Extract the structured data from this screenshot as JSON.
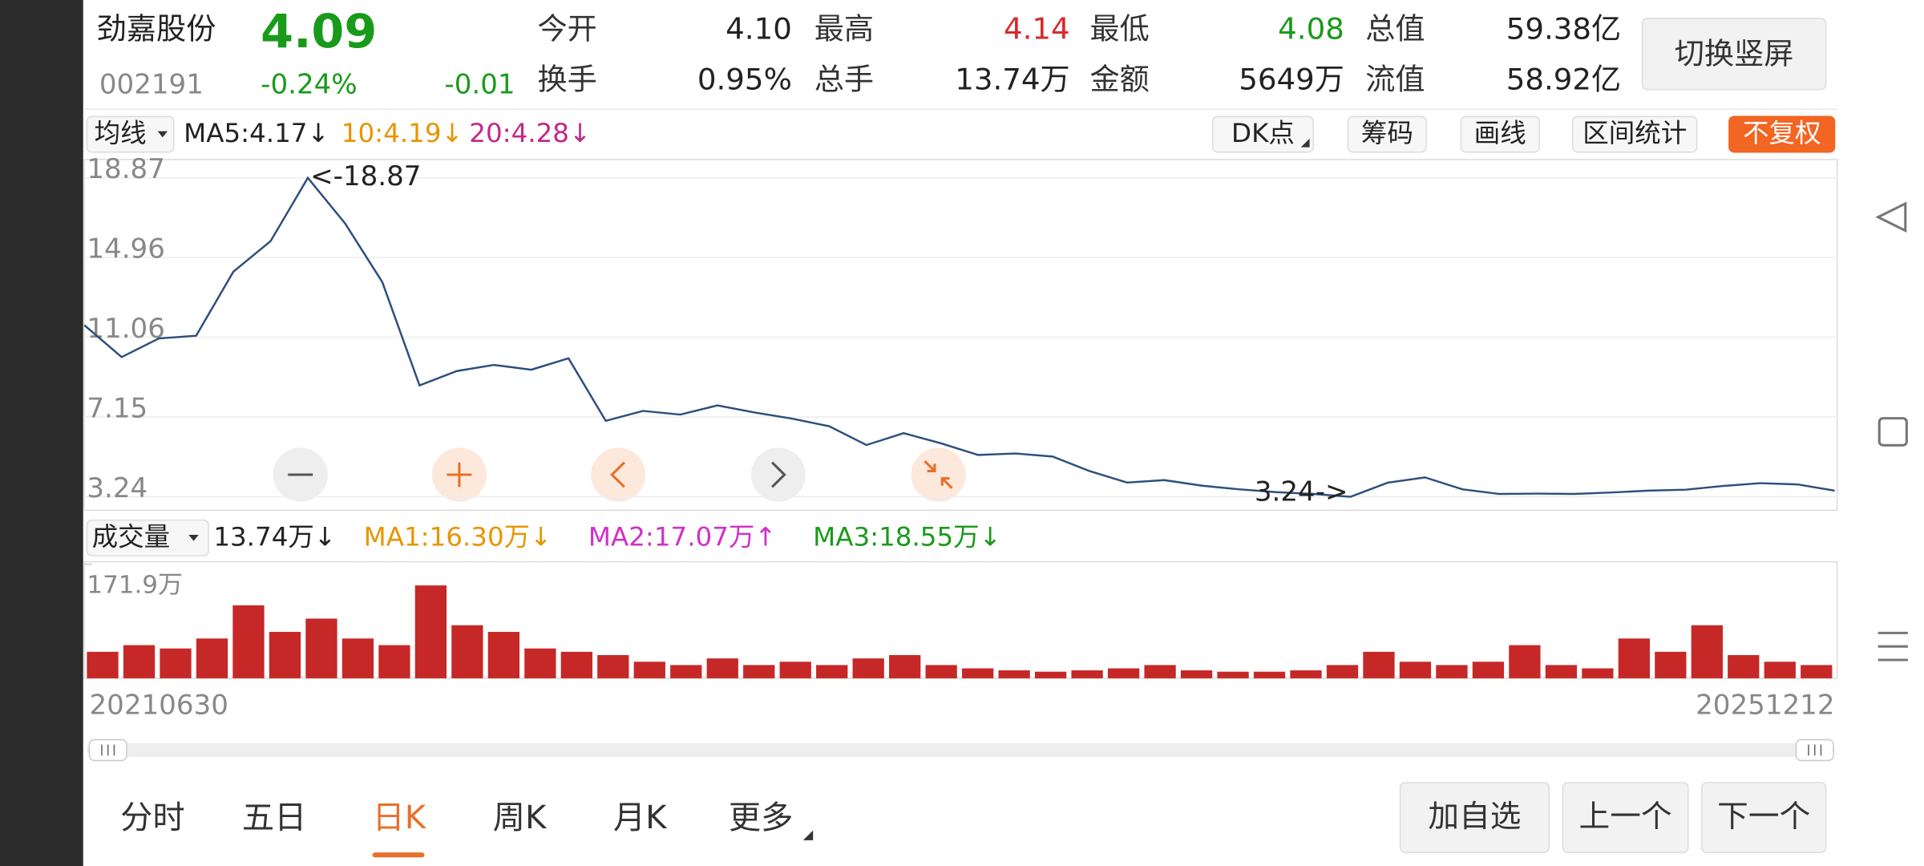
{
  "header": {
    "name": "劲嘉股份",
    "price": "4.09",
    "code": "002191",
    "change_pct": "-0.24%",
    "change": "-0.01",
    "stats": [
      {
        "label": "今开",
        "value": "4.10",
        "color": "#222222"
      },
      {
        "label": "最高",
        "value": "4.14",
        "color": "#d62b2b"
      },
      {
        "label": "最低",
        "value": "4.08",
        "color": "#1a9a1a"
      },
      {
        "label": "总值",
        "value": "59.38亿",
        "color": "#222222"
      },
      {
        "label": "换手",
        "value": "0.95%",
        "color": "#222222"
      },
      {
        "label": "总手",
        "value": "13.74万",
        "color": "#222222"
      },
      {
        "label": "金额",
        "value": "5649万",
        "color": "#222222"
      },
      {
        "label": "流值",
        "value": "58.92亿",
        "color": "#222222"
      }
    ],
    "orientation_button": "切换竖屏"
  },
  "ma_bar": {
    "selector": "均线",
    "items": [
      {
        "text": "MA5:4.17↓",
        "color": "#222222"
      },
      {
        "text": "10:4.19↓",
        "color": "#e69500"
      },
      {
        "text": "20:4.28↓",
        "color": "#c0288a"
      }
    ]
  },
  "tools": [
    {
      "text": "DK点",
      "active": false
    },
    {
      "text": "筹码",
      "active": false
    },
    {
      "text": "画线",
      "active": false
    },
    {
      "text": "区间统计",
      "active": false
    },
    {
      "text": "不复权",
      "active": true
    }
  ],
  "volume_bar": {
    "selector": "成交量",
    "items": [
      {
        "text": "13.74万↓",
        "color": "#222222"
      },
      {
        "text": "MA1:16.30万↓",
        "color": "#e69500"
      },
      {
        "text": "MA2:17.07万↑",
        "color": "#d030c8"
      },
      {
        "text": "MA3:18.55万↓",
        "color": "#1a9a1a"
      }
    ]
  },
  "chart_data": [
    {
      "type": "line",
      "color": "#2c4f7c",
      "ylim": [
        2.58,
        19.77
      ],
      "yticks": [
        18.87,
        14.96,
        11.06,
        7.15,
        3.24
      ],
      "grid": true,
      "values": [
        11.65,
        10.09,
        11.0,
        11.13,
        14.27,
        15.77,
        18.87,
        16.64,
        13.76,
        8.7,
        9.4,
        9.7,
        9.47,
        10.03,
        6.96,
        7.45,
        7.27,
        7.72,
        7.37,
        7.07,
        6.7,
        5.78,
        6.36,
        5.86,
        5.29,
        5.36,
        5.21,
        4.5,
        3.94,
        4.06,
        3.79,
        3.61,
        3.47,
        3.38,
        3.24,
        3.93,
        4.19,
        3.61,
        3.38,
        3.4,
        3.38,
        3.45,
        3.54,
        3.59,
        3.77,
        3.91,
        3.85,
        3.54
      ],
      "annotations": [
        "<-18.87",
        "3.24->"
      ]
    },
    {
      "type": "bar",
      "color": "#c62828",
      "ylim": [
        0,
        175.6
      ],
      "yticks": [
        {
          "value": 171.9,
          "label": "171.9万"
        }
      ],
      "values": [
        40,
        50,
        45,
        60,
        110,
        70,
        90,
        60,
        50,
        140,
        80,
        70,
        45,
        40,
        35,
        25,
        20,
        30,
        20,
        25,
        20,
        30,
        35,
        20,
        15,
        12,
        10,
        12,
        15,
        20,
        12,
        10,
        10,
        12,
        20,
        40,
        25,
        20,
        25,
        50,
        20,
        15,
        60,
        40,
        80,
        35,
        25,
        20
      ],
      "x_labels": [
        "20210630",
        "20251212"
      ]
    }
  ],
  "tabs": [
    "分时",
    "五日",
    "日K",
    "周K",
    "月K",
    "更多"
  ],
  "active_tab_index": 2,
  "buttons": [
    "加自选",
    "上一个",
    "下一个"
  ]
}
